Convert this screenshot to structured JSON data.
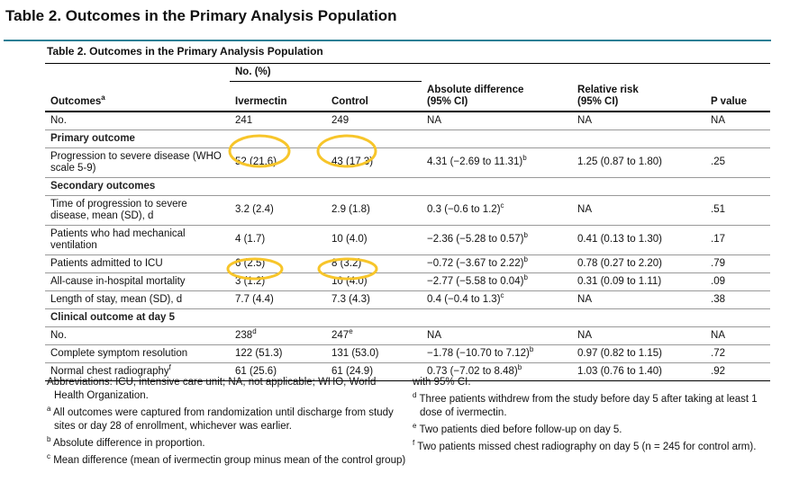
{
  "header": {
    "title": "Table 2.  Outcomes in the Primary Analysis Population"
  },
  "table": {
    "title": "Table 2. Outcomes in the Primary Analysis Population",
    "group_header": "No. (%)",
    "columns": [
      {
        "text": "Outcomes",
        "sup": "a"
      },
      "Ivermectin",
      "Control",
      "Absolute difference (95% CI)",
      "Relative risk (95% CI)",
      "P value"
    ],
    "rows": [
      {
        "cells": [
          "No.",
          "241",
          "249",
          "NA",
          "NA",
          "NA"
        ]
      },
      {
        "section": "Primary outcome"
      },
      {
        "cells": [
          "Progression to severe disease (WHO scale 5-9)",
          "52 (21.6)",
          "43 (17.3)",
          {
            "text": "4.31 (−2.69 to 11.31)",
            "sup": "b"
          },
          "1.25 (0.87 to 1.80)",
          ".25"
        ]
      },
      {
        "section": "Secondary outcomes"
      },
      {
        "cells": [
          "Time of progression to severe disease, mean (SD), d",
          "3.2 (2.4)",
          "2.9 (1.8)",
          {
            "text": "0.3 (−0.6 to 1.2)",
            "sup": "c"
          },
          "NA",
          ".51"
        ]
      },
      {
        "cells": [
          "Patients who had mechanical ventilation",
          "4 (1.7)",
          "10 (4.0)",
          {
            "text": "−2.36 (−5.28 to 0.57)",
            "sup": "b"
          },
          "0.41 (0.13 to 1.30)",
          ".17"
        ]
      },
      {
        "cells": [
          "Patients admitted to ICU",
          "6 (2.5)",
          "8 (3.2)",
          {
            "text": "−0.72 (−3.67 to 2.22)",
            "sup": "b"
          },
          "0.78 (0.27 to 2.20)",
          ".79"
        ]
      },
      {
        "cells": [
          "All-cause in-hospital mortality",
          "3 (1.2)",
          "10 (4.0)",
          {
            "text": "−2.77 (−5.58 to 0.04)",
            "sup": "b"
          },
          "0.31 (0.09 to 1.11)",
          ".09"
        ]
      },
      {
        "cells": [
          "Length of stay, mean (SD), d",
          "7.7 (4.4)",
          "7.3 (4.3)",
          {
            "text": "0.4 (−0.4 to 1.3)",
            "sup": "c"
          },
          "NA",
          ".38"
        ]
      },
      {
        "section": "Clinical outcome at day 5"
      },
      {
        "cells": [
          "No.",
          {
            "text": "238",
            "sup": "d"
          },
          {
            "text": "247",
            "sup": "e"
          },
          "NA",
          "NA",
          "NA"
        ]
      },
      {
        "cells": [
          "Complete symptom resolution",
          "122 (51.3)",
          "131 (53.0)",
          {
            "text": "−1.78 (−10.70 to 7.12)",
            "sup": "b"
          },
          "0.97 (0.82 to 1.15)",
          ".72"
        ]
      },
      {
        "cells": [
          {
            "text": "Normal chest radiography",
            "sup": "f"
          },
          "61 (25.6)",
          "61 (24.9)",
          {
            "text": "0.73 (−7.02 to 8.48)",
            "sup": "b"
          },
          "1.03 (0.76 to 1.40)",
          ".92"
        ]
      }
    ]
  },
  "footnotes": {
    "left": [
      {
        "text": "Abbreviations: ICU, intensive care unit; NA, not applicable; WHO, World Health Organization."
      },
      {
        "sup": "a",
        "text": "All outcomes were captured from randomization until discharge from study sites or day 28 of enrollment, whichever was earlier."
      },
      {
        "sup": "b",
        "text": "Absolute difference in proportion."
      },
      {
        "sup": "c",
        "text": "Mean difference (mean of ivermectin group minus mean of the control group)"
      }
    ],
    "right": [
      {
        "text": "with 95% CI."
      },
      {
        "sup": "d",
        "text": "Three patients withdrew from the study before day 5 after taking at least 1 dose of ivermectin."
      },
      {
        "sup": "e",
        "text": "Two patients died before follow-up on day 5."
      },
      {
        "sup": "f",
        "text": "Two patients missed chest radiography on day 5 (n = 245 for control arm)."
      }
    ]
  }
}
